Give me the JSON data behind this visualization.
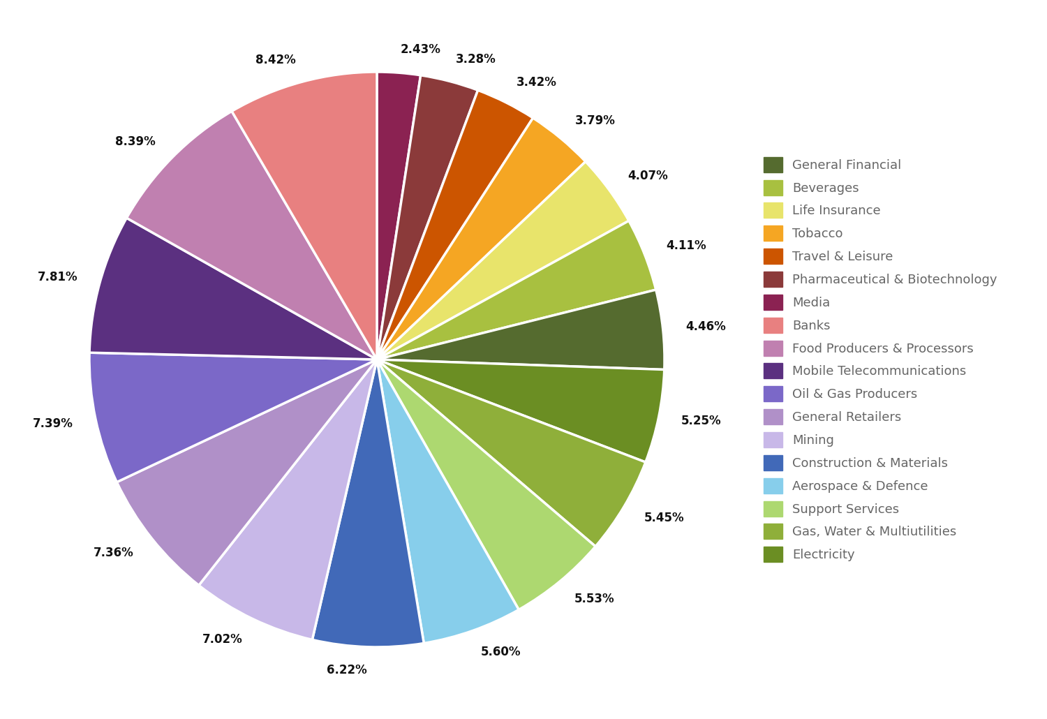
{
  "pie_slices": [
    {
      "label": "Media",
      "value": 2.43,
      "color": "#8B2252"
    },
    {
      "label": "Pharmaceutical & Biotechnology",
      "value": 3.28,
      "color": "#8B3A3A"
    },
    {
      "label": "Travel & Leisure",
      "value": 3.42,
      "color": "#CC5500"
    },
    {
      "label": "Tobacco",
      "value": 3.79,
      "color": "#F5A623"
    },
    {
      "label": "Life Insurance",
      "value": 4.07,
      "color": "#E8E46B"
    },
    {
      "label": "Beverages",
      "value": 4.11,
      "color": "#A8C040"
    },
    {
      "label": "General Financial",
      "value": 4.46,
      "color": "#556B2F"
    },
    {
      "label": "Electricity",
      "value": 5.25,
      "color": "#6B8E23"
    },
    {
      "label": "Gas, Water & Multiutilities",
      "value": 5.45,
      "color": "#8FAF3A"
    },
    {
      "label": "Support Services",
      "value": 5.53,
      "color": "#ADD870"
    },
    {
      "label": "Aerospace & Defence",
      "value": 5.6,
      "color": "#87CEEB"
    },
    {
      "label": "Construction & Materials",
      "value": 6.22,
      "color": "#4169B8"
    },
    {
      "label": "Mining",
      "value": 7.02,
      "color": "#C8B8E8"
    },
    {
      "label": "General Retailers",
      "value": 7.36,
      "color": "#B090C8"
    },
    {
      "label": "Oil & Gas Producers",
      "value": 7.39,
      "color": "#7B68C8"
    },
    {
      "label": "Mobile Telecommunications",
      "value": 7.81,
      "color": "#5B3080"
    },
    {
      "label": "Food Producers & Processors",
      "value": 8.39,
      "color": "#C080B0"
    },
    {
      "label": "Banks",
      "value": 8.42,
      "color": "#E88080"
    }
  ],
  "legend_order": [
    {
      "label": "General Financial",
      "color": "#556B2F"
    },
    {
      "label": "Beverages",
      "color": "#A8C040"
    },
    {
      "label": "Life Insurance",
      "color": "#E8E46B"
    },
    {
      "label": "Tobacco",
      "color": "#F5A623"
    },
    {
      "label": "Travel & Leisure",
      "color": "#CC5500"
    },
    {
      "label": "Pharmaceutical & Biotechnology",
      "color": "#8B3A3A"
    },
    {
      "label": "Media",
      "color": "#8B2252"
    },
    {
      "label": "Banks",
      "color": "#E88080"
    },
    {
      "label": "Food Producers & Processors",
      "color": "#C080B0"
    },
    {
      "label": "Mobile Telecommunications",
      "color": "#5B3080"
    },
    {
      "label": "Oil & Gas Producers",
      "color": "#7B68C8"
    },
    {
      "label": "General Retailers",
      "color": "#B090C8"
    },
    {
      "label": "Mining",
      "color": "#C8B8E8"
    },
    {
      "label": "Construction & Materials",
      "color": "#4169B8"
    },
    {
      "label": "Aerospace & Defence",
      "color": "#87CEEB"
    },
    {
      "label": "Support Services",
      "color": "#ADD870"
    },
    {
      "label": "Gas, Water & Multiutilities",
      "color": "#8FAF3A"
    },
    {
      "label": "Electricity",
      "color": "#6B8E23"
    }
  ],
  "background_color": "#ffffff",
  "label_fontsize": 12,
  "legend_fontsize": 13,
  "startangle": 90
}
